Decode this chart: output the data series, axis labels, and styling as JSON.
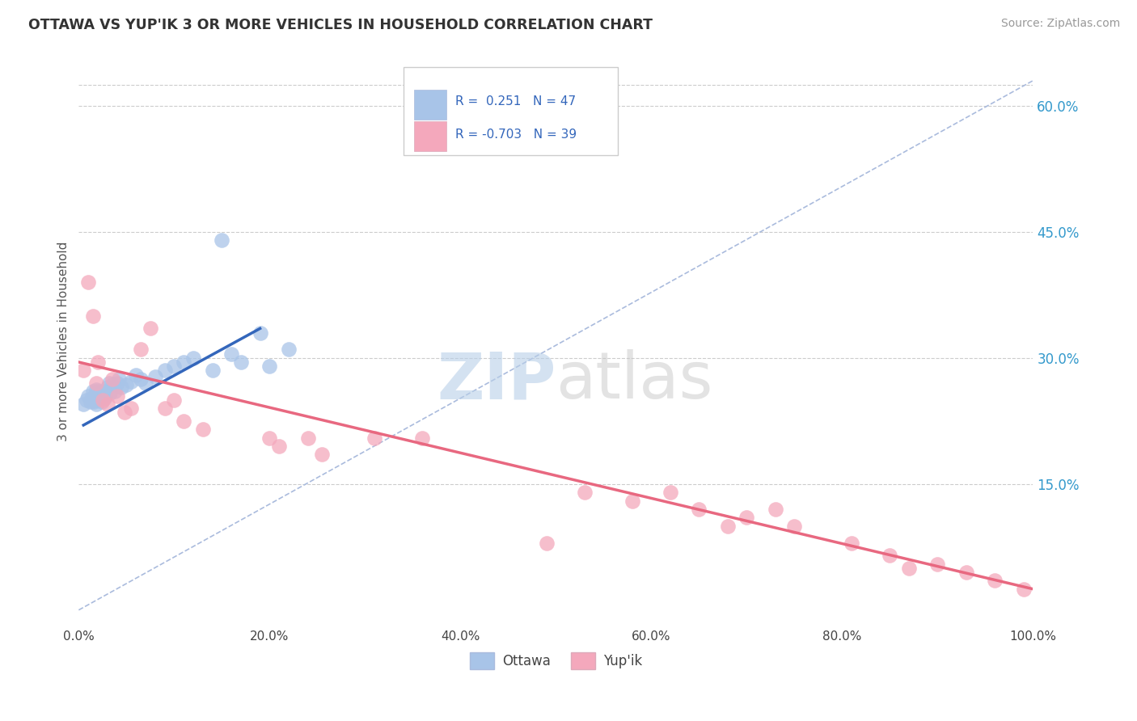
{
  "title": "OTTAWA VS YUP'IK 3 OR MORE VEHICLES IN HOUSEHOLD CORRELATION CHART",
  "source": "Source: ZipAtlas.com",
  "ylabel": "3 or more Vehicles in Household",
  "xlim": [
    0.0,
    1.0
  ],
  "ylim": [
    -0.02,
    0.66
  ],
  "x_tick_labels": [
    "0.0%",
    "20.0%",
    "40.0%",
    "60.0%",
    "80.0%",
    "100.0%"
  ],
  "x_tick_vals": [
    0.0,
    0.2,
    0.4,
    0.6,
    0.8,
    1.0
  ],
  "y_tick_labels": [
    "15.0%",
    "30.0%",
    "45.0%",
    "60.0%"
  ],
  "y_tick_vals": [
    0.15,
    0.3,
    0.45,
    0.6
  ],
  "legend_labels": [
    "Ottawa",
    "Yup'ik"
  ],
  "ottawa_R": "0.251",
  "ottawa_N": "47",
  "yupik_R": "-0.703",
  "yupik_N": "39",
  "ottawa_color": "#a8c4e8",
  "yupik_color": "#f4a8bc",
  "ottawa_line_color": "#3366bb",
  "yupik_line_color": "#e86880",
  "diagonal_color": "#aabbdd",
  "background_color": "#ffffff",
  "grid_color": "#cccccc",
  "ottawa_line_x0": 0.005,
  "ottawa_line_y0": 0.22,
  "ottawa_line_x1": 0.19,
  "ottawa_line_y1": 0.335,
  "yupik_line_x0": 0.0,
  "yupik_line_y0": 0.295,
  "yupik_line_x1": 1.0,
  "yupik_line_y1": 0.025,
  "ottawa_x": [
    0.005,
    0.008,
    0.01,
    0.012,
    0.013,
    0.015,
    0.015,
    0.016,
    0.017,
    0.018,
    0.018,
    0.019,
    0.02,
    0.02,
    0.021,
    0.022,
    0.023,
    0.024,
    0.025,
    0.026,
    0.027,
    0.028,
    0.03,
    0.032,
    0.033,
    0.035,
    0.038,
    0.04,
    0.042,
    0.045,
    0.05,
    0.055,
    0.06,
    0.065,
    0.07,
    0.08,
    0.09,
    0.1,
    0.11,
    0.12,
    0.14,
    0.15,
    0.16,
    0.17,
    0.19,
    0.2,
    0.22
  ],
  "ottawa_y": [
    0.245,
    0.25,
    0.255,
    0.248,
    0.252,
    0.25,
    0.26,
    0.248,
    0.255,
    0.262,
    0.245,
    0.25,
    0.26,
    0.255,
    0.25,
    0.252,
    0.258,
    0.248,
    0.255,
    0.26,
    0.252,
    0.255,
    0.265,
    0.27,
    0.258,
    0.268,
    0.26,
    0.27,
    0.275,
    0.265,
    0.268,
    0.272,
    0.28,
    0.275,
    0.27,
    0.278,
    0.285,
    0.29,
    0.295,
    0.3,
    0.285,
    0.44,
    0.305,
    0.295,
    0.33,
    0.29,
    0.31
  ],
  "yupik_x": [
    0.005,
    0.01,
    0.015,
    0.018,
    0.02,
    0.025,
    0.03,
    0.035,
    0.04,
    0.048,
    0.055,
    0.065,
    0.075,
    0.09,
    0.1,
    0.11,
    0.13,
    0.2,
    0.21,
    0.24,
    0.255,
    0.31,
    0.36,
    0.49,
    0.53,
    0.58,
    0.62,
    0.65,
    0.68,
    0.7,
    0.73,
    0.75,
    0.81,
    0.85,
    0.87,
    0.9,
    0.93,
    0.96,
    0.99
  ],
  "yupik_y": [
    0.285,
    0.39,
    0.35,
    0.27,
    0.295,
    0.25,
    0.245,
    0.275,
    0.255,
    0.235,
    0.24,
    0.31,
    0.335,
    0.24,
    0.25,
    0.225,
    0.215,
    0.205,
    0.195,
    0.205,
    0.185,
    0.205,
    0.205,
    0.08,
    0.14,
    0.13,
    0.14,
    0.12,
    0.1,
    0.11,
    0.12,
    0.1,
    0.08,
    0.065,
    0.05,
    0.055,
    0.045,
    0.035,
    0.025
  ]
}
